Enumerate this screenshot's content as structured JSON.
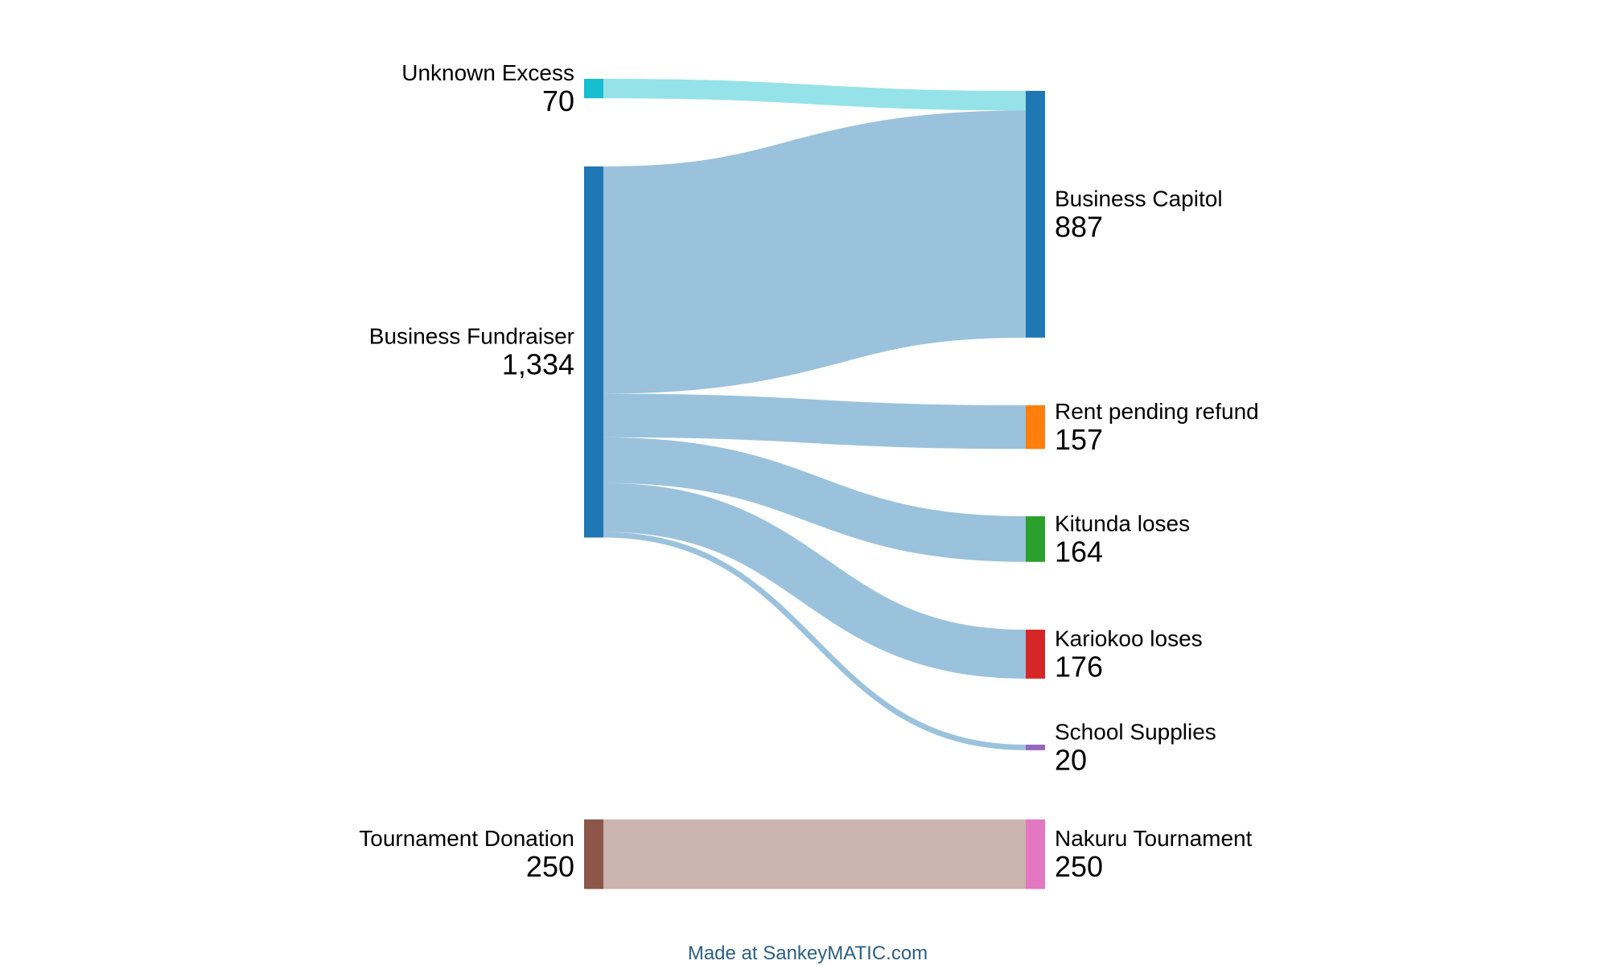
{
  "chart_data": {
    "type": "sankey",
    "nodes": [
      {
        "id": "unknown_excess",
        "name": "Unknown Excess",
        "value": 70,
        "value_label": "70",
        "column": "left",
        "color": "#17becf"
      },
      {
        "id": "business_fundraiser",
        "name": "Business Fundraiser",
        "value": 1334,
        "value_label": "1,334",
        "column": "left",
        "color": "#1f77b4"
      },
      {
        "id": "tournament_donation",
        "name": "Tournament Donation",
        "value": 250,
        "value_label": "250",
        "column": "left",
        "color": "#8c564b"
      },
      {
        "id": "business_capitol",
        "name": "Business Capitol",
        "value": 887,
        "value_label": "887",
        "column": "right",
        "color": "#1f77b4"
      },
      {
        "id": "rent_pending_refund",
        "name": "Rent pending refund",
        "value": 157,
        "value_label": "157",
        "column": "right",
        "color": "#ff7f0e"
      },
      {
        "id": "kitunda_loses",
        "name": "Kitunda loses",
        "value": 164,
        "value_label": "164",
        "column": "right",
        "color": "#2ca02c"
      },
      {
        "id": "kariokoo_loses",
        "name": "Kariokoo loses",
        "value": 176,
        "value_label": "176",
        "column": "right",
        "color": "#d62728"
      },
      {
        "id": "school_supplies",
        "name": "School Supplies",
        "value": 20,
        "value_label": "20",
        "column": "right",
        "color": "#9467bd"
      },
      {
        "id": "nakuru_tournament",
        "name": "Nakuru Tournament",
        "value": 250,
        "value_label": "250",
        "column": "right",
        "color": "#e377c2"
      }
    ],
    "flows": [
      {
        "source": "unknown_excess",
        "target": "business_capitol",
        "value": 70
      },
      {
        "source": "business_fundraiser",
        "target": "business_capitol",
        "value": 817
      },
      {
        "source": "business_fundraiser",
        "target": "rent_pending_refund",
        "value": 157
      },
      {
        "source": "business_fundraiser",
        "target": "kitunda_loses",
        "value": 164
      },
      {
        "source": "business_fundraiser",
        "target": "kariokoo_loses",
        "value": 176
      },
      {
        "source": "business_fundraiser",
        "target": "school_supplies",
        "value": 20
      },
      {
        "source": "tournament_donation",
        "target": "nakuru_tournament",
        "value": 250
      }
    ],
    "flow_opacity": 0.45
  },
  "footer": {
    "credit": "Made at SankeyMATIC.com"
  }
}
